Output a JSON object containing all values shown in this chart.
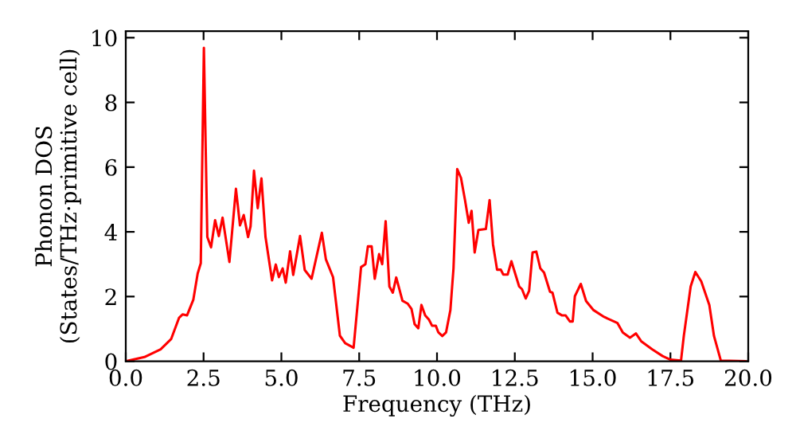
{
  "chart_data": {
    "type": "line",
    "xlabel": "Frequency (THz)",
    "ylabel": "Phonon DOS\n(States/THz·primitive cell)",
    "x": [
      0,
      0.6,
      1.12,
      1.46,
      1.71,
      1.83,
      1.97,
      2.17,
      2.31,
      2.41,
      2.51,
      2.62,
      2.74,
      2.87,
      2.99,
      3.11,
      3.33,
      3.54,
      3.67,
      3.79,
      3.93,
      4.01,
      4.12,
      4.24,
      4.36,
      4.49,
      4.7,
      4.82,
      4.92,
      5.04,
      5.14,
      5.28,
      5.38,
      5.6,
      5.75,
      5.97,
      6.3,
      6.43,
      6.66,
      6.88,
      7.05,
      7.32,
      7.56,
      7.7,
      7.78,
      7.9,
      8.0,
      8.14,
      8.24,
      8.35,
      8.47,
      8.58,
      8.69,
      8.89,
      9.06,
      9.18,
      9.28,
      9.4,
      9.5,
      9.62,
      9.74,
      9.84,
      9.96,
      10.04,
      10.17,
      10.29,
      10.43,
      10.53,
      10.65,
      10.77,
      10.9,
      11.02,
      11.11,
      11.21,
      11.33,
      11.57,
      11.69,
      11.8,
      11.93,
      12.05,
      12.13,
      12.27,
      12.39,
      12.64,
      12.73,
      12.85,
      12.96,
      13.07,
      13.19,
      13.32,
      13.44,
      13.63,
      13.71,
      13.87,
      14.01,
      14.13,
      14.27,
      14.36,
      14.43,
      14.62,
      14.79,
      15.03,
      15.37,
      15.8,
      15.97,
      16.2,
      16.39,
      16.56,
      16.91,
      17.25,
      17.5,
      17.84,
      17.93,
      18.15,
      18.3,
      18.49,
      18.75,
      18.9,
      19.12,
      19.9
    ],
    "series": [
      {
        "color": "#ff0000",
        "values": [
          0,
          0.13,
          0.37,
          0.69,
          1.34,
          1.45,
          1.42,
          1.9,
          2.71,
          3.03,
          9.69,
          3.84,
          3.52,
          4.36,
          3.87,
          4.44,
          3.07,
          5.33,
          4.2,
          4.52,
          3.84,
          4.17,
          5.89,
          4.73,
          5.65,
          3.84,
          2.5,
          2.99,
          2.6,
          2.87,
          2.43,
          3.4,
          2.67,
          3.87,
          2.82,
          2.55,
          3.97,
          3.15,
          2.6,
          0.79,
          0.56,
          0.42,
          2.91,
          3.0,
          3.55,
          3.55,
          2.55,
          3.31,
          3.0,
          4.33,
          2.31,
          2.12,
          2.59,
          1.87,
          1.78,
          1.62,
          1.15,
          1.02,
          1.74,
          1.42,
          1.29,
          1.1,
          1.1,
          0.9,
          0.78,
          0.89,
          1.58,
          2.87,
          5.94,
          5.67,
          4.98,
          4.28,
          4.65,
          3.36,
          4.06,
          4.09,
          4.98,
          3.61,
          2.83,
          2.83,
          2.68,
          2.68,
          3.09,
          2.31,
          2.23,
          1.94,
          2.18,
          3.36,
          3.39,
          2.87,
          2.74,
          2.15,
          2.12,
          1.5,
          1.42,
          1.42,
          1.23,
          1.23,
          2.01,
          2.39,
          1.86,
          1.58,
          1.37,
          1.18,
          0.89,
          0.73,
          0.86,
          0.62,
          0.37,
          0.16,
          0.05,
          0.02,
          0.78,
          2.31,
          2.76,
          2.47,
          1.74,
          0.78,
          0.02,
          0
        ]
      }
    ],
    "xlim": [
      0,
      20
    ],
    "ylim": [
      0,
      10.2
    ],
    "xticks": [
      {
        "value": 0,
        "label": "0.0"
      },
      {
        "value": 2.5,
        "label": "2.5"
      },
      {
        "value": 5,
        "label": "5.0"
      },
      {
        "value": 7.5,
        "label": "7.5"
      },
      {
        "value": 10,
        "label": "10.0"
      },
      {
        "value": 12.5,
        "label": "12.5"
      },
      {
        "value": 15,
        "label": "15.0"
      },
      {
        "value": 17.5,
        "label": "17.5"
      },
      {
        "value": 20,
        "label": "20.0"
      }
    ],
    "yticks": [
      0,
      2,
      4,
      6,
      8,
      10
    ],
    "grid": false,
    "line_style": "solid"
  }
}
